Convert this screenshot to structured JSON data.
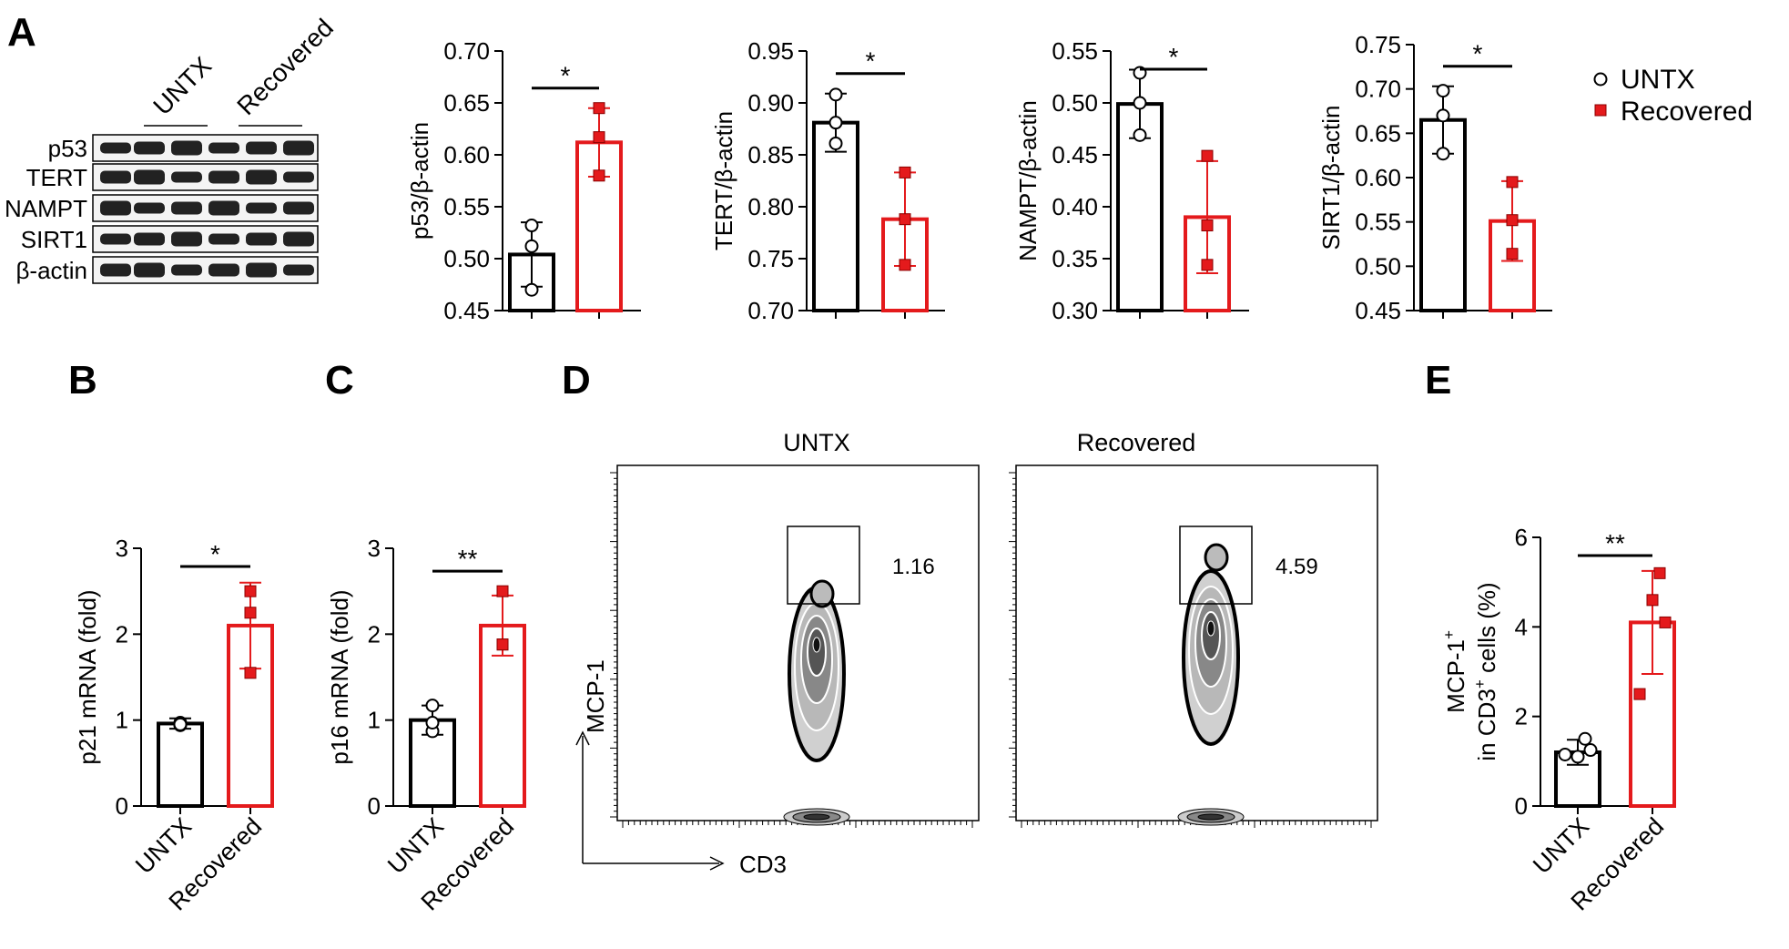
{
  "panel_letters": {
    "A": "A",
    "B": "B",
    "C": "C",
    "D": "D",
    "E": "E"
  },
  "legend": {
    "untx": "UNTX",
    "recovered": "Recovered"
  },
  "colors": {
    "untx": "#000000",
    "recovered": "#e41a1c"
  },
  "blot": {
    "group_labels": [
      "UNTX",
      "Recovered"
    ],
    "proteins": [
      "p53",
      "TERT",
      "NAMPT",
      "SIRT1",
      "β-actin"
    ]
  },
  "flow": {
    "titles": [
      "UNTX",
      "Recovered"
    ],
    "gate_values": [
      "1.16",
      "4.59"
    ],
    "xlabel": "CD3",
    "ylabel": "MCP-1"
  },
  "chart_data": [
    {
      "panel": "A",
      "type": "bar",
      "categories": [
        "",
        ""
      ],
      "ylabel": "p53/β-actin",
      "ylim": [
        0.45,
        0.7
      ],
      "ticks": [
        0.45,
        0.5,
        0.55,
        0.6,
        0.65,
        0.7
      ],
      "decimals": 2,
      "series": [
        {
          "name": "UNTX",
          "mean": 0.504,
          "sd": 0.031,
          "points": [
            0.532,
            0.512,
            0.47
          ]
        },
        {
          "name": "Recovered",
          "mean": 0.612,
          "sd": 0.033,
          "points": [
            0.645,
            0.617,
            0.58
          ]
        }
      ],
      "significance": "*"
    },
    {
      "panel": "A",
      "type": "bar",
      "categories": [
        "",
        ""
      ],
      "ylabel": "TERT/β-actin",
      "ylim": [
        0.7,
        0.95
      ],
      "ticks": [
        0.7,
        0.75,
        0.8,
        0.85,
        0.9,
        0.95
      ],
      "decimals": 2,
      "series": [
        {
          "name": "UNTX",
          "mean": 0.881,
          "sd": 0.028,
          "points": [
            0.908,
            0.881,
            0.861
          ]
        },
        {
          "name": "Recovered",
          "mean": 0.788,
          "sd": 0.045,
          "points": [
            0.833,
            0.788,
            0.744
          ]
        }
      ],
      "significance": "*"
    },
    {
      "panel": "A",
      "type": "bar",
      "categories": [
        "",
        ""
      ],
      "ylabel": "NAMPT/β-actin",
      "ylim": [
        0.3,
        0.55
      ],
      "ticks": [
        0.3,
        0.35,
        0.4,
        0.45,
        0.5,
        0.55
      ],
      "decimals": 2,
      "series": [
        {
          "name": "UNTX",
          "mean": 0.499,
          "sd": 0.033,
          "points": [
            0.529,
            0.5,
            0.469
          ]
        },
        {
          "name": "Recovered",
          "mean": 0.39,
          "sd": 0.054,
          "points": [
            0.449,
            0.382,
            0.344
          ]
        }
      ],
      "significance": "*"
    },
    {
      "panel": "A",
      "type": "bar",
      "categories": [
        "",
        ""
      ],
      "ylabel": "SIRT1/β-actin",
      "ylim": [
        0.45,
        0.75
      ],
      "ticks": [
        0.45,
        0.5,
        0.55,
        0.6,
        0.65,
        0.7,
        0.75
      ],
      "decimals": 2,
      "series": [
        {
          "name": "UNTX",
          "mean": 0.665,
          "sd": 0.038,
          "points": [
            0.698,
            0.67,
            0.627
          ]
        },
        {
          "name": "Recovered",
          "mean": 0.551,
          "sd": 0.045,
          "points": [
            0.595,
            0.552,
            0.514
          ]
        }
      ],
      "significance": "*"
    },
    {
      "panel": "B",
      "type": "bar",
      "categories": [
        "UNTX",
        "Recovered"
      ],
      "ylabel": "p21 mRNA (fold)",
      "ylim": [
        0,
        3
      ],
      "ticks": [
        0,
        1,
        2,
        3
      ],
      "decimals": 0,
      "series": [
        {
          "name": "UNTX",
          "mean": 0.96,
          "sd": 0.06,
          "points": [
            0.94,
            0.97,
            0.95
          ]
        },
        {
          "name": "Recovered",
          "mean": 2.1,
          "sd": 0.5,
          "points": [
            2.5,
            2.25,
            1.55
          ]
        }
      ],
      "significance": "*"
    },
    {
      "panel": "C",
      "type": "bar",
      "categories": [
        "UNTX",
        "Recovered"
      ],
      "ylabel": "p16 mRNA (fold)",
      "ylim": [
        0,
        3
      ],
      "ticks": [
        0,
        1,
        2,
        3
      ],
      "decimals": 0,
      "series": [
        {
          "name": "UNTX",
          "mean": 1.0,
          "sd": 0.17,
          "points": [
            1.17,
            0.87,
            0.97
          ]
        },
        {
          "name": "Recovered",
          "mean": 2.1,
          "sd": 0.35,
          "points": [
            2.5,
            1.88,
            1.88
          ]
        }
      ],
      "significance": "**"
    },
    {
      "panel": "E",
      "type": "bar",
      "categories": [
        "UNTX",
        "Recovered"
      ],
      "ylabel_line1": "MCP-1",
      "ylabel_line1_sup": "+",
      "ylabel_line2a": "in  CD3",
      "ylabel_line2_sup": "+",
      "ylabel_line2b": " cells (%)",
      "ylim": [
        0,
        6
      ],
      "ticks": [
        0,
        2,
        4,
        6
      ],
      "decimals": 0,
      "series": [
        {
          "name": "UNTX",
          "mean": 1.2,
          "sd": 0.28,
          "points": [
            1.5,
            1.1,
            1.25,
            1.15
          ]
        },
        {
          "name": "Recovered",
          "mean": 4.1,
          "sd": 1.15,
          "points": [
            5.2,
            4.6,
            4.1,
            2.5
          ]
        }
      ],
      "significance": "**"
    }
  ]
}
